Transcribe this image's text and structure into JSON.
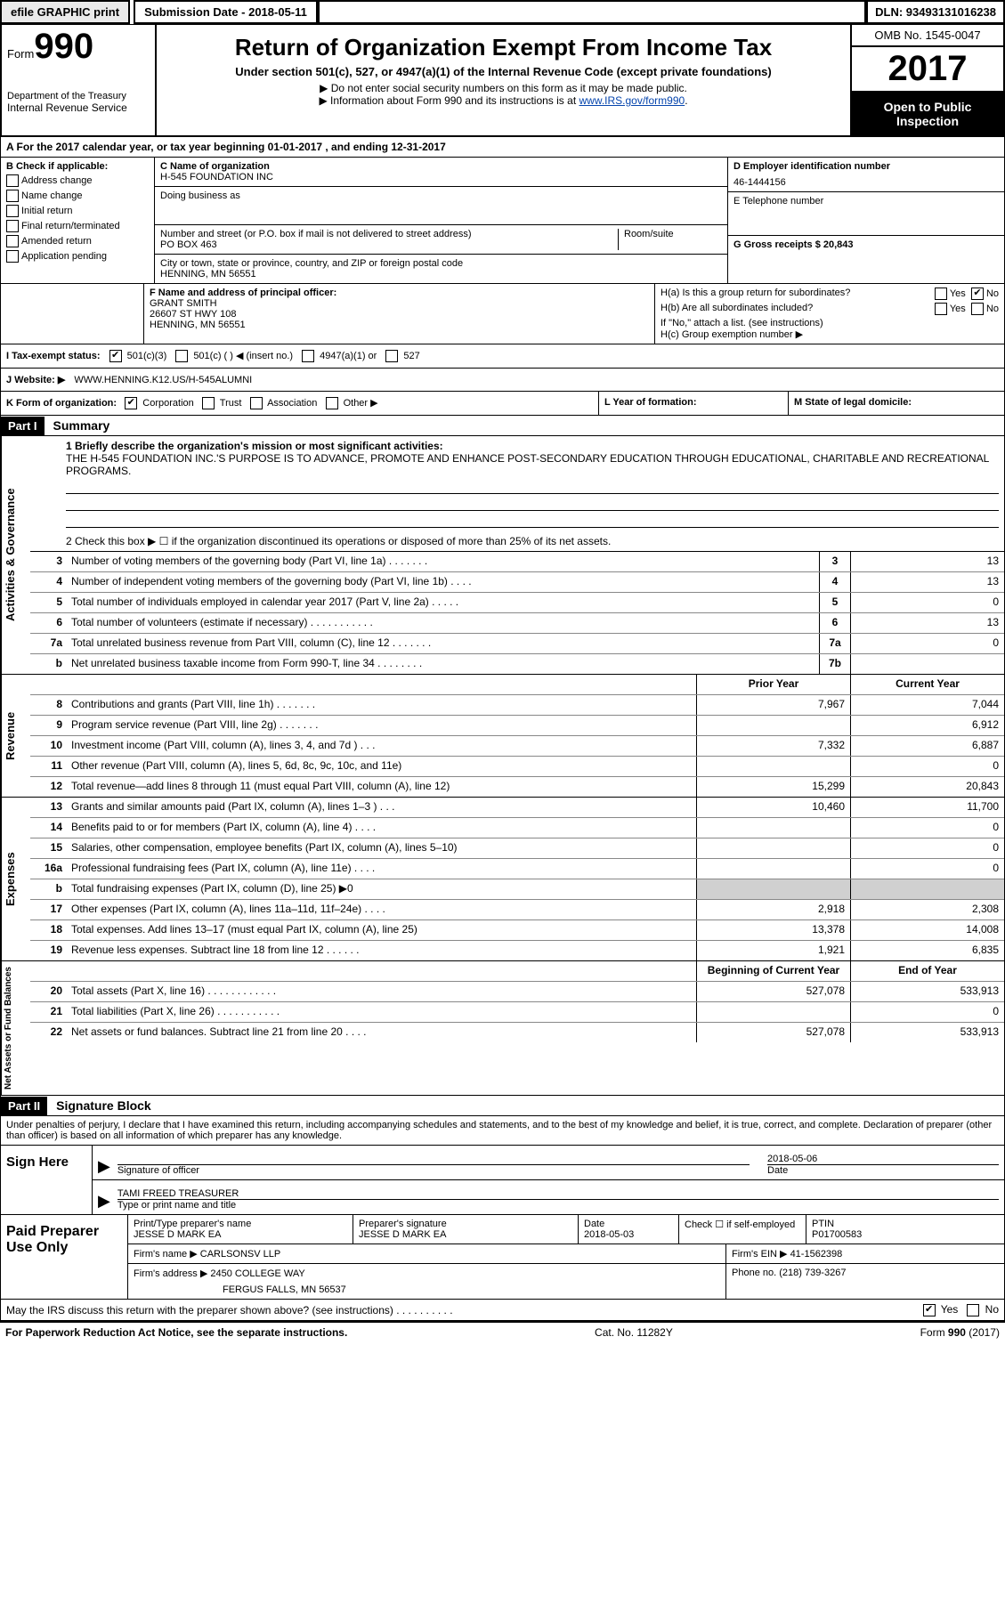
{
  "top": {
    "efile_btn": "efile GRAPHIC print",
    "submission": "Submission Date - 2018-05-11",
    "dln": "DLN: 93493131016238"
  },
  "header": {
    "form_word": "Form",
    "form_num": "990",
    "dept1": "Department of the Treasury",
    "dept2": "Internal Revenue Service",
    "title": "Return of Organization Exempt From Income Tax",
    "sub": "Under section 501(c), 527, or 4947(a)(1) of the Internal Revenue Code (except private foundations)",
    "note1": "▶ Do not enter social security numbers on this form as it may be made public.",
    "note2_pre": "▶ Information about Form 990 and its instructions is at ",
    "note2_link": "www.IRS.gov/form990",
    "omb": "OMB No. 1545-0047",
    "year": "2017",
    "open1": "Open to Public",
    "open2": "Inspection"
  },
  "rowA": "A   For the 2017 calendar year, or tax year beginning 01-01-2017   , and ending 12-31-2017",
  "colB": {
    "title": "B Check if applicable:",
    "items": [
      "Address change",
      "Name change",
      "Initial return",
      "Final return/terminated",
      "Amended return",
      "Application pending"
    ]
  },
  "colC": {
    "name_lbl": "C Name of organization",
    "name": "H-545 FOUNDATION INC",
    "dba_lbl": "Doing business as",
    "street_lbl": "Number and street (or P.O. box if mail is not delivered to street address)",
    "street": "PO BOX 463",
    "suite_lbl": "Room/suite",
    "city_lbl": "City or town, state or province, country, and ZIP or foreign postal code",
    "city": "HENNING, MN  56551"
  },
  "colD": {
    "ein_lbl": "D Employer identification number",
    "ein": "46-1444156",
    "phone_lbl": "E Telephone number",
    "gross_lbl": "G Gross receipts $ 20,843"
  },
  "colF": {
    "lbl": "F Name and address of principal officer:",
    "name": "GRANT SMITH",
    "addr1": "26607 ST HWY 108",
    "addr2": "HENNING, MN  56551"
  },
  "colH": {
    "ha": "H(a)  Is this a group return for subordinates?",
    "hb": "H(b)  Are all subordinates included?",
    "hb_note": "If \"No,\" attach a list. (see instructions)",
    "hc": "H(c)  Group exemption number ▶",
    "yes": "Yes",
    "no": "No"
  },
  "rowI": {
    "lbl": "I   Tax-exempt status:",
    "opt1": "501(c)(3)",
    "opt2": "501(c) (   ) ◀ (insert no.)",
    "opt3": "4947(a)(1) or",
    "opt4": "527"
  },
  "rowJ": {
    "lbl": "J   Website: ▶",
    "val": "WWW.HENNING.K12.US/H-545ALUMNI"
  },
  "rowK": {
    "lbl": "K Form of organization:",
    "opts": [
      "Corporation",
      "Trust",
      "Association",
      "Other ▶"
    ],
    "l_lbl": "L Year of formation:",
    "m_lbl": "M State of legal domicile:"
  },
  "part1": {
    "head": "Part I",
    "title": "Summary",
    "l1_lbl": "1   Briefly describe the organization's mission or most significant activities:",
    "l1_text": "THE H-545 FOUNDATION INC.'S PURPOSE IS TO ADVANCE, PROMOTE AND ENHANCE POST-SECONDARY EDUCATION THROUGH EDUCATIONAL, CHARITABLE AND RECREATIONAL PROGRAMS.",
    "l2": "2   Check this box ▶ ☐  if the organization discontinued its operations or disposed of more than 25% of its net assets.",
    "side_ag": "Activities & Governance",
    "side_rev": "Revenue",
    "side_exp": "Expenses",
    "side_net": "Net Assets or Fund Balances",
    "lines_ag": [
      {
        "n": "3",
        "d": "Number of voting members of the governing body (Part VI, line 1a)   .    .    .    .    .    .    .",
        "b": "3",
        "v": "13"
      },
      {
        "n": "4",
        "d": "Number of independent voting members of the governing body (Part VI, line 1b)   .    .    .    .",
        "b": "4",
        "v": "13"
      },
      {
        "n": "5",
        "d": "Total number of individuals employed in calendar year 2017 (Part V, line 2a)   .    .    .    .    .",
        "b": "5",
        "v": "0"
      },
      {
        "n": "6",
        "d": "Total number of volunteers (estimate if necessary)   .    .    .    .    .    .    .    .    .    .    .",
        "b": "6",
        "v": "13"
      },
      {
        "n": "7a",
        "d": "Total unrelated business revenue from Part VIII, column (C), line 12   .    .    .    .    .    .    .",
        "b": "7a",
        "v": "0"
      },
      {
        "n": "b",
        "d": "Net unrelated business taxable income from Form 990-T, line 34   .    .    .    .    .    .    .    .",
        "b": "7b",
        "v": ""
      }
    ],
    "col_prior": "Prior Year",
    "col_curr": "Current Year",
    "lines_rev": [
      {
        "n": "8",
        "d": "Contributions and grants (Part VIII, line 1h)   .    .    .    .    .    .    .",
        "p": "7,967",
        "c": "7,044"
      },
      {
        "n": "9",
        "d": "Program service revenue (Part VIII, line 2g)    .    .    .    .    .    .    .",
        "p": "",
        "c": "6,912"
      },
      {
        "n": "10",
        "d": "Investment income (Part VIII, column (A), lines 3, 4, and 7d )   .    .    .",
        "p": "7,332",
        "c": "6,887"
      },
      {
        "n": "11",
        "d": "Other revenue (Part VIII, column (A), lines 5, 6d, 8c, 9c, 10c, and 11e)",
        "p": "",
        "c": "0"
      },
      {
        "n": "12",
        "d": "Total revenue—add lines 8 through 11 (must equal Part VIII, column (A), line 12)",
        "p": "15,299",
        "c": "20,843"
      }
    ],
    "lines_exp": [
      {
        "n": "13",
        "d": "Grants and similar amounts paid (Part IX, column (A), lines 1–3 )   .    .    .",
        "p": "10,460",
        "c": "11,700"
      },
      {
        "n": "14",
        "d": "Benefits paid to or for members (Part IX, column (A), line 4)   .    .    .    .",
        "p": "",
        "c": "0"
      },
      {
        "n": "15",
        "d": "Salaries, other compensation, employee benefits (Part IX, column (A), lines 5–10)",
        "p": "",
        "c": "0"
      },
      {
        "n": "16a",
        "d": "Professional fundraising fees (Part IX, column (A), line 11e)   .    .    .    .",
        "p": "",
        "c": "0"
      },
      {
        "n": "b",
        "d": "Total fundraising expenses (Part IX, column (D), line 25) ▶0",
        "p": "shade",
        "c": "shade"
      },
      {
        "n": "17",
        "d": "Other expenses (Part IX, column (A), lines 11a–11d, 11f–24e)   .    .    .    .",
        "p": "2,918",
        "c": "2,308"
      },
      {
        "n": "18",
        "d": "Total expenses. Add lines 13–17 (must equal Part IX, column (A), line 25)",
        "p": "13,378",
        "c": "14,008"
      },
      {
        "n": "19",
        "d": "Revenue less expenses. Subtract line 18 from line 12   .    .    .    .    .    .",
        "p": "1,921",
        "c": "6,835"
      }
    ],
    "col_begin": "Beginning of Current Year",
    "col_end": "End of Year",
    "lines_net": [
      {
        "n": "20",
        "d": "Total assets (Part X, line 16)   .    .    .    .    .    .    .    .    .    .    .    .",
        "p": "527,078",
        "c": "533,913"
      },
      {
        "n": "21",
        "d": "Total liabilities (Part X, line 26)   .    .    .    .    .    .    .    .    .    .    .",
        "p": "",
        "c": "0"
      },
      {
        "n": "22",
        "d": "Net assets or fund balances. Subtract line 21 from line 20   .    .    .    .",
        "p": "527,078",
        "c": "533,913"
      }
    ]
  },
  "part2": {
    "head": "Part II",
    "title": "Signature Block",
    "decl": "Under penalties of perjury, I declare that I have examined this return, including accompanying schedules and statements, and to the best of my knowledge and belief, it is true, correct, and complete. Declaration of preparer (other than officer) is based on all information of which preparer has any knowledge.",
    "sign_here": "Sign Here",
    "sig_officer": "Signature of officer",
    "sig_date_lbl": "Date",
    "sig_date": "2018-05-06",
    "name_title": "TAMI FREED  TREASURER",
    "name_title_lbl": "Type or print name and title",
    "paid_lbl": "Paid Preparer Use Only",
    "prep_name_lbl": "Print/Type preparer's name",
    "prep_name": "JESSE D MARK EA",
    "prep_sig_lbl": "Preparer's signature",
    "prep_sig": "JESSE D MARK EA",
    "prep_date_lbl": "Date",
    "prep_date": "2018-05-03",
    "prep_check_lbl": "Check ☐ if self-employed",
    "ptin_lbl": "PTIN",
    "ptin": "P01700583",
    "firm_name_lbl": "Firm's name      ▶",
    "firm_name": "CARLSONSV LLP",
    "firm_ein_lbl": "Firm's EIN ▶",
    "firm_ein": "41-1562398",
    "firm_addr_lbl": "Firm's address ▶",
    "firm_addr1": "2450 COLLEGE WAY",
    "firm_addr2": "FERGUS FALLS, MN  56537",
    "firm_phone_lbl": "Phone no.",
    "firm_phone": "(218) 739-3267",
    "discuss": "May the IRS discuss this return with the preparer shown above? (see instructions)   .    .    .    .    .    .    .    .    .    .",
    "yes": "Yes",
    "no": "No"
  },
  "footer": {
    "left": "For Paperwork Reduction Act Notice, see the separate instructions.",
    "mid": "Cat. No. 11282Y",
    "right": "Form 990 (2017)"
  }
}
